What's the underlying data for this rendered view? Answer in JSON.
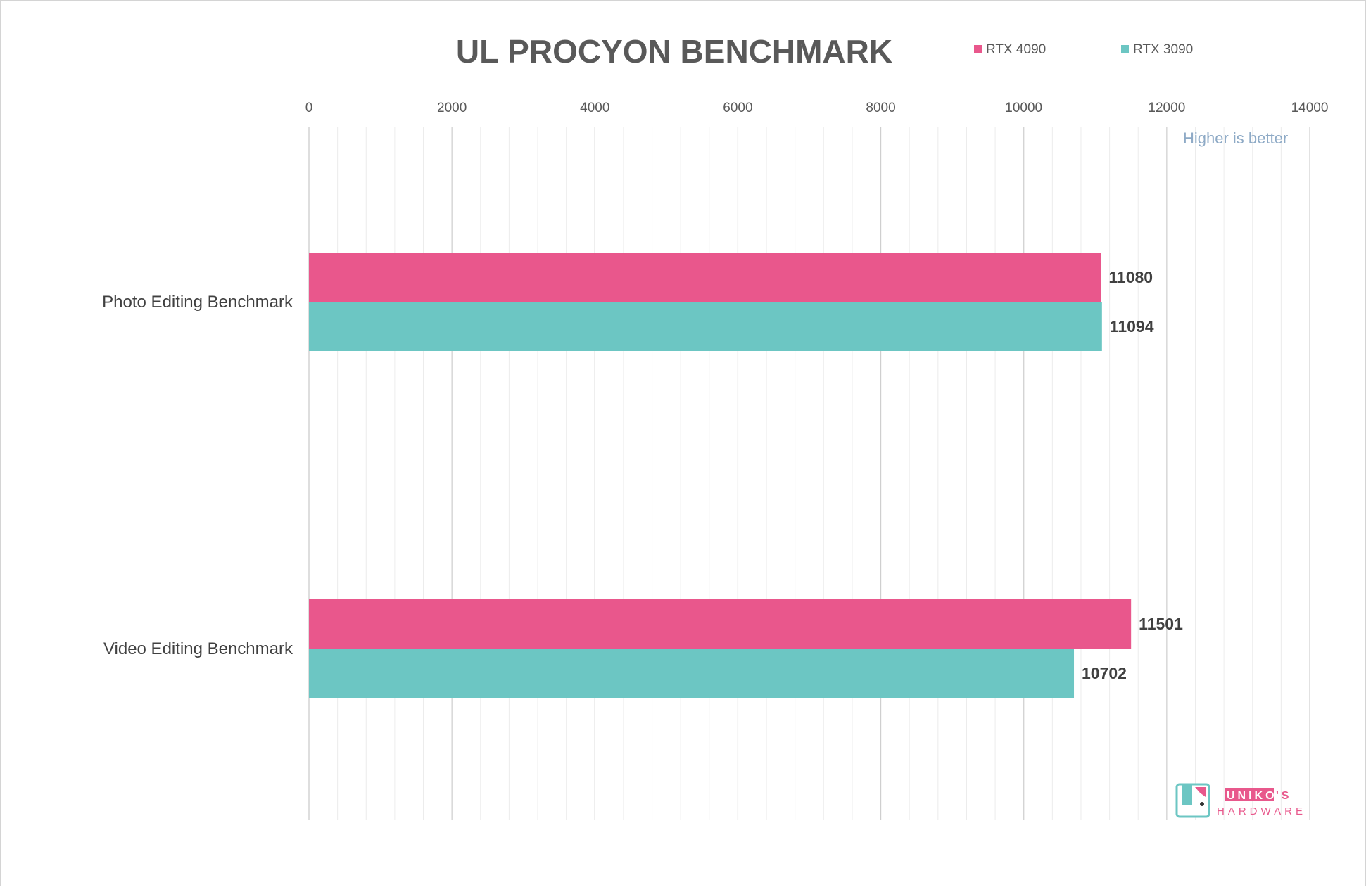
{
  "chart_data": {
    "type": "bar",
    "orientation": "horizontal",
    "title": "UL PROCYON BENCHMARK",
    "note": "Higher is better",
    "categories": [
      "Photo Editing Benchmark",
      "Video Editing Benchmark"
    ],
    "series": [
      {
        "name": "RTX 4090",
        "color": "#e9578c",
        "values": [
          11080,
          11501
        ]
      },
      {
        "name": "RTX 3090",
        "color": "#6cc6c3",
        "values": [
          11094,
          10702
        ]
      }
    ],
    "xlim": [
      0,
      14000
    ],
    "x_ticks": [
      "0",
      "2000",
      "4000",
      "6000",
      "8000",
      "10000",
      "12000",
      "14000"
    ],
    "x_axis_position": "top",
    "grid": true,
    "legend_position": "top-right"
  },
  "watermark": {
    "line1_a": "UNIKO",
    "line1_b": "'S",
    "line2": "HARDWARE",
    "colors": {
      "pink": "#e8588c",
      "teal": "#6cc6c3"
    }
  }
}
